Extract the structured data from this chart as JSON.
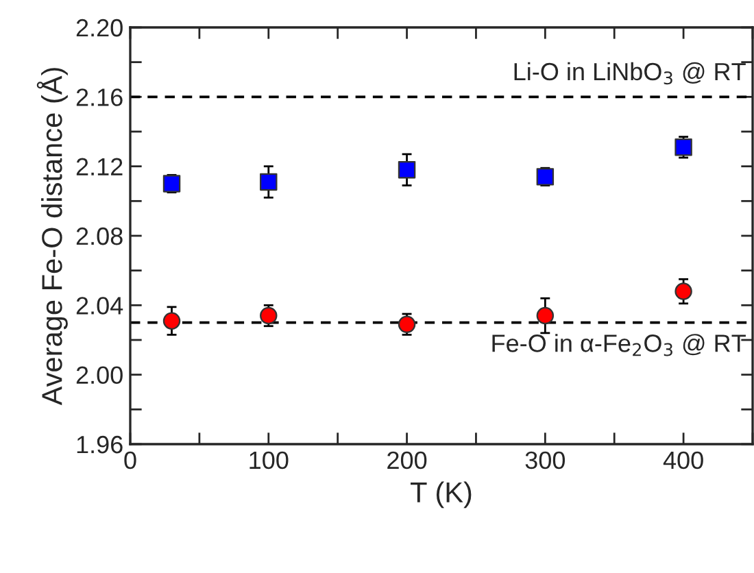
{
  "chart_data": {
    "type": "scatter",
    "xlabel": "T (K)",
    "ylabel": "Average Fe-O distance (Å)",
    "xlim": [
      0,
      450
    ],
    "ylim": [
      1.96,
      2.2
    ],
    "xticks": [
      0,
      {
        "value": 50,
        "label": null
      },
      100,
      {
        "value": 150,
        "label": null
      },
      200,
      {
        "value": 250,
        "label": null
      },
      300,
      {
        "value": 350,
        "label": null
      },
      400,
      {
        "value": 450,
        "label": null
      }
    ],
    "yticks": [
      {
        "value": 1.96,
        "label": "1.96"
      },
      {
        "value": 1.98,
        "label": null
      },
      {
        "value": 2.0,
        "label": "2.00"
      },
      {
        "value": 2.02,
        "label": null
      },
      {
        "value": 2.04,
        "label": "2.04"
      },
      {
        "value": 2.06,
        "label": null
      },
      {
        "value": 2.08,
        "label": "2.08"
      },
      {
        "value": 2.1,
        "label": null
      },
      {
        "value": 2.12,
        "label": "2.12"
      },
      {
        "value": 2.14,
        "label": null
      },
      {
        "value": 2.16,
        "label": "2.16"
      },
      {
        "value": 2.18,
        "label": null
      },
      {
        "value": 2.2,
        "label": "2.20"
      }
    ],
    "grid": false,
    "series": [
      {
        "color": "#0000ff",
        "marker": "square",
        "x": [
          30,
          100,
          200,
          300,
          400
        ],
        "values": [
          2.11,
          2.111,
          2.118,
          2.114,
          2.131
        ],
        "errors": [
          0.005,
          0.009,
          0.009,
          0.005,
          0.006
        ]
      },
      {
        "color": "#ff0000",
        "marker": "circle",
        "x": [
          30,
          100,
          200,
          300,
          400
        ],
        "values": [
          2.031,
          2.034,
          2.029,
          2.034,
          2.048
        ],
        "errors": [
          0.008,
          0.006,
          0.006,
          0.01,
          0.007
        ]
      }
    ],
    "ref_lines": [
      {
        "axis": "y",
        "value": 2.16,
        "label": "Li-O in LiNbO$_{3}$ @ RT",
        "color": "#000000",
        "line_style": "dashed"
      },
      {
        "axis": "y",
        "value": 2.03,
        "label": "Fe-O in α-Fe$_{2}$O$_{3}$ @ RT",
        "color": "#000000",
        "line_style": "dashed"
      }
    ]
  }
}
